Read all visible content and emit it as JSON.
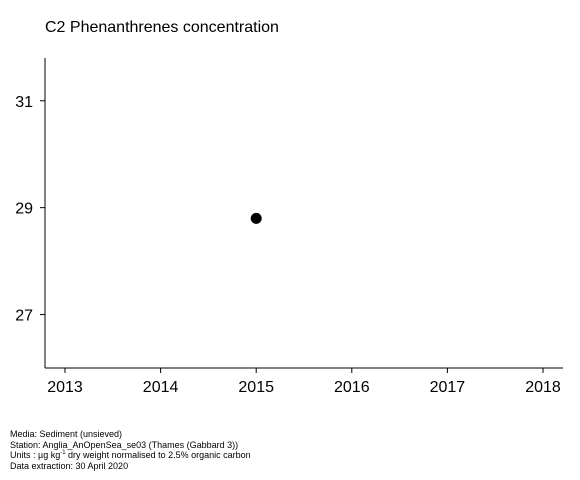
{
  "chart_data": {
    "type": "scatter",
    "title": "C2 Phenanthrenes concentration",
    "xlabel": "",
    "ylabel": "",
    "x_ticks": [
      "2013",
      "2014",
      "2015",
      "2016",
      "2017",
      "2018"
    ],
    "y_ticks": [
      "27",
      "29",
      "31"
    ],
    "xlim": [
      2012.8,
      2018.2
    ],
    "ylim": [
      26.0,
      31.8
    ],
    "points": [
      {
        "x": 2015,
        "y": 28.8
      }
    ],
    "grid": false,
    "legend": "none",
    "marker_color": "#000000"
  },
  "footer": {
    "media": "Media: Sediment (unsieved)",
    "station": "Station: Anglia_AnOpenSea_se03 (Thames (Gabbard 3))",
    "units_prefix": "Units : µg kg",
    "units_sup": "-1",
    "units_suffix": " dry weight normalised to 2.5% organic carbon",
    "extraction": "Data extraction: 30 April 2020"
  }
}
